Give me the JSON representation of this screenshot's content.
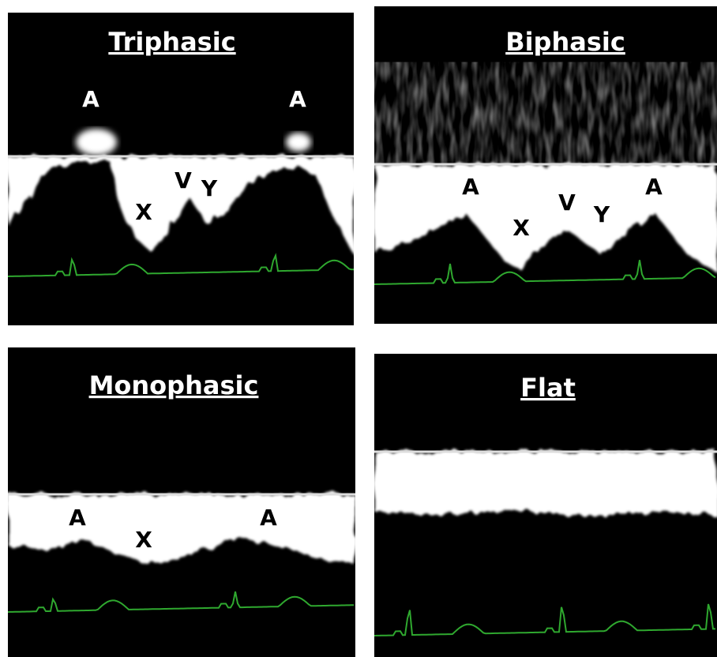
{
  "panels": [
    {
      "title": "Triphasic",
      "labels": [
        "A",
        "A",
        "X",
        "V",
        "Y"
      ]
    },
    {
      "title": "Biphasic",
      "labels": [
        "A",
        "X",
        "V",
        "Y",
        "A"
      ]
    },
    {
      "title": "Monophasic",
      "labels": [
        "A",
        "X",
        "A"
      ]
    },
    {
      "title": "Flat",
      "labels": []
    }
  ]
}
